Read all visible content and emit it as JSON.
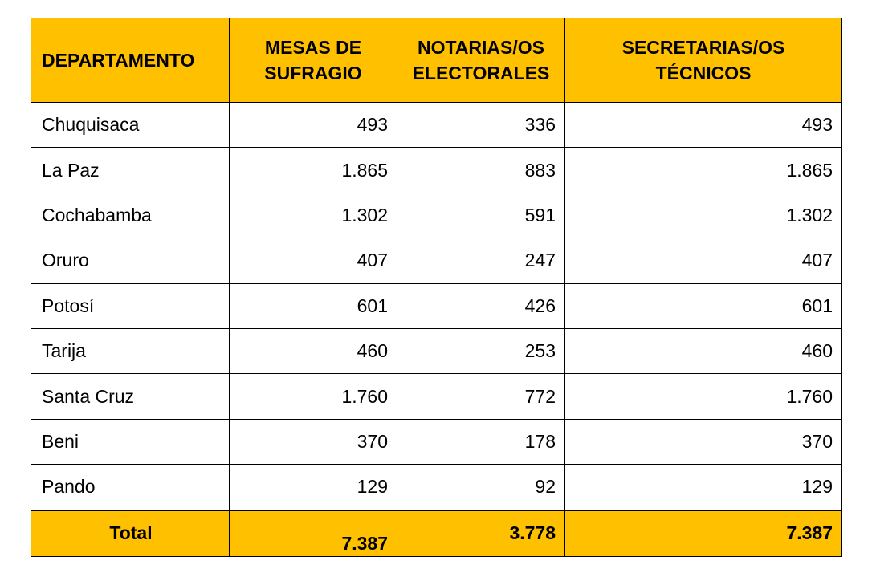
{
  "table": {
    "headers": [
      "DEPARTAMENTO",
      "MESAS DE SUFRAGIO",
      "NOTARIAS/OS ELECTORALES",
      "SECRETARIAS/OS TÉCNICOS"
    ],
    "rows": [
      {
        "departamento": "Chuquisaca",
        "mesas": "493",
        "notarias": "336",
        "secretarias": "493"
      },
      {
        "departamento": "La Paz",
        "mesas": "1.865",
        "notarias": "883",
        "secretarias": "1.865"
      },
      {
        "departamento": "Cochabamba",
        "mesas": "1.302",
        "notarias": "591",
        "secretarias": "1.302"
      },
      {
        "departamento": "Oruro",
        "mesas": "407",
        "notarias": "247",
        "secretarias": "407"
      },
      {
        "departamento": "Potosí",
        "mesas": "601",
        "notarias": "426",
        "secretarias": "601"
      },
      {
        "departamento": "Tarija",
        "mesas": "460",
        "notarias": "253",
        "secretarias": "460"
      },
      {
        "departamento": "Santa Cruz",
        "mesas": "1.760",
        "notarias": "772",
        "secretarias": "1.760"
      },
      {
        "departamento": "Beni",
        "mesas": "370",
        "notarias": "178",
        "secretarias": "370"
      },
      {
        "departamento": "Pando",
        "mesas": "129",
        "notarias": "92",
        "secretarias": "129"
      }
    ],
    "total": {
      "label": "Total",
      "mesas": "7.387",
      "notarias": "3.778",
      "secretarias": "7.387"
    }
  },
  "colors": {
    "header_bg": "#FFC000"
  }
}
